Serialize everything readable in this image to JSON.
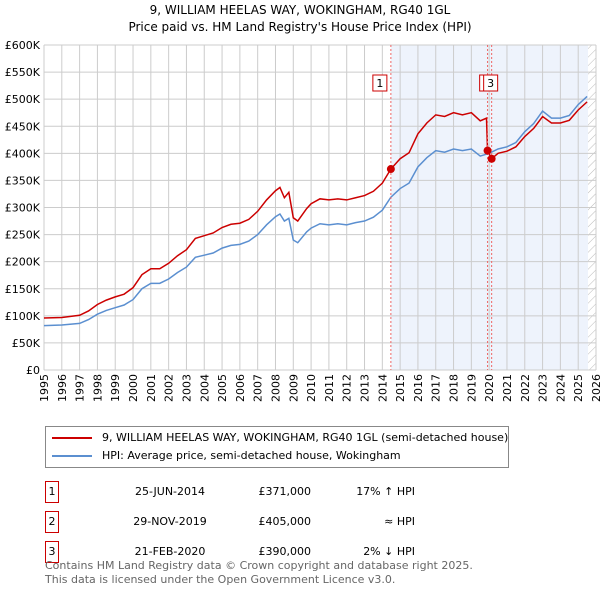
{
  "chart_data": {
    "type": "line",
    "title": "9, WILLIAM HEELAS WAY, WOKINGHAM, RG40 1GL",
    "subtitle": "Price paid vs. HM Land Registry's House Price Index (HPI)",
    "xlim": [
      1995,
      2026
    ],
    "ylim": [
      0,
      600000
    ],
    "x_ticks": [
      "1995",
      "1996",
      "1997",
      "1998",
      "1999",
      "2000",
      "2001",
      "2002",
      "2003",
      "2004",
      "2005",
      "2006",
      "2007",
      "2008",
      "2009",
      "2010",
      "2011",
      "2012",
      "2013",
      "2014",
      "2015",
      "2016",
      "2017",
      "2018",
      "2019",
      "2020",
      "2021",
      "2022",
      "2023",
      "2024",
      "2025",
      "2026"
    ],
    "y_ticks": [
      "£0",
      "£50K",
      "£100K",
      "£150K",
      "£200K",
      "£250K",
      "£300K",
      "£350K",
      "£400K",
      "£450K",
      "£500K",
      "£550K",
      "£600K"
    ],
    "grid": true,
    "colors": {
      "property": "#cc0000",
      "hpi": "#5b8fd0",
      "shade": "#eef3fc"
    },
    "series": [
      {
        "name": "9, WILLIAM HEELAS WAY, WOKINGHAM, RG40 1GL (semi-detached house)",
        "color": "#cc0000",
        "x": [
          1995,
          1996,
          1997,
          1997.5,
          1998,
          1998.5,
          1999,
          1999.5,
          2000,
          2000.5,
          2001,
          2001.5,
          2002,
          2002.5,
          2003,
          2003.5,
          2004,
          2004.5,
          2005,
          2005.5,
          2006,
          2006.5,
          2007,
          2007.5,
          2008,
          2008.25,
          2008.5,
          2008.75,
          2009,
          2009.25,
          2009.75,
          2010,
          2010.5,
          2011,
          2011.5,
          2012,
          2012.5,
          2013,
          2013.5,
          2014,
          2014.48,
          2015,
          2015.5,
          2016,
          2016.5,
          2017,
          2017.5,
          2018,
          2018.5,
          2019,
          2019.5,
          2019.85,
          2019.91,
          2020.14,
          2020.5,
          2021,
          2021.5,
          2022,
          2022.5,
          2023,
          2023.5,
          2024,
          2024.5,
          2025,
          2025.5
        ],
        "y": [
          96,
          97,
          101,
          109,
          121,
          129,
          135,
          140,
          152,
          176,
          187,
          187,
          197,
          211,
          222,
          243,
          248,
          253,
          263,
          269,
          271,
          278,
          293,
          314,
          331,
          337,
          318,
          328,
          281,
          275,
          298,
          307,
          316,
          314,
          316,
          314,
          318,
          322,
          330,
          345,
          371,
          390,
          401,
          436,
          456,
          471,
          468,
          475,
          471,
          475,
          460,
          465,
          405,
          390,
          400,
          404,
          412,
          431,
          446,
          468,
          456,
          456,
          461,
          480,
          495
        ]
      },
      {
        "name": "HPI: Average price, semi-detached house, Wokingham",
        "color": "#5b8fd0",
        "x": [
          1995,
          1996,
          1997,
          1997.5,
          1998,
          1998.5,
          1999,
          1999.5,
          2000,
          2000.5,
          2001,
          2001.5,
          2002,
          2002.5,
          2003,
          2003.5,
          2004,
          2004.5,
          2005,
          2005.5,
          2006,
          2006.5,
          2007,
          2007.5,
          2008,
          2008.25,
          2008.5,
          2008.75,
          2009,
          2009.25,
          2009.75,
          2010,
          2010.5,
          2011,
          2011.5,
          2012,
          2012.5,
          2013,
          2013.5,
          2014,
          2014.48,
          2015,
          2015.5,
          2016,
          2016.5,
          2017,
          2017.5,
          2018,
          2018.5,
          2019,
          2019.5,
          2020,
          2020.5,
          2021,
          2021.5,
          2022,
          2022.5,
          2023,
          2023.5,
          2024,
          2024.5,
          2025,
          2025.5
        ],
        "y": [
          82,
          83,
          86,
          93,
          103,
          110,
          115,
          120,
          130,
          150,
          160,
          160,
          168,
          180,
          190,
          208,
          212,
          216,
          225,
          230,
          232,
          238,
          250,
          268,
          283,
          288,
          275,
          280,
          240,
          235,
          255,
          262,
          270,
          268,
          270,
          268,
          272,
          275,
          282,
          295,
          319,
          335,
          345,
          375,
          392,
          405,
          402,
          408,
          405,
          408,
          395,
          400,
          408,
          412,
          420,
          440,
          455,
          478,
          465,
          465,
          470,
          490,
          505
        ]
      }
    ],
    "y_unit": "thousands GBP",
    "sales": [
      {
        "label": "1",
        "x": 2014.48,
        "y": 371
      },
      {
        "label": "2",
        "x": 2019.91,
        "y": 405
      },
      {
        "label": "3",
        "x": 2020.14,
        "y": 390
      }
    ],
    "forecast_start": 2025.55
  },
  "legend": {
    "property": "9, WILLIAM HEELAS WAY, WOKINGHAM, RG40 1GL (semi-detached house)",
    "hpi": "HPI: Average price, semi-detached house, Wokingham"
  },
  "transactions": [
    {
      "num": "1",
      "date": "25-JUN-2014",
      "price": "£371,000",
      "hpi": "17% ↑ HPI"
    },
    {
      "num": "2",
      "date": "29-NOV-2019",
      "price": "£405,000",
      "hpi": "≈ HPI"
    },
    {
      "num": "3",
      "date": "21-FEB-2020",
      "price": "£390,000",
      "hpi": "2% ↓ HPI"
    }
  ],
  "footer": [
    "Contains HM Land Registry data © Crown copyright and database right 2025.",
    "This data is licensed under the Open Government Licence v3.0."
  ]
}
